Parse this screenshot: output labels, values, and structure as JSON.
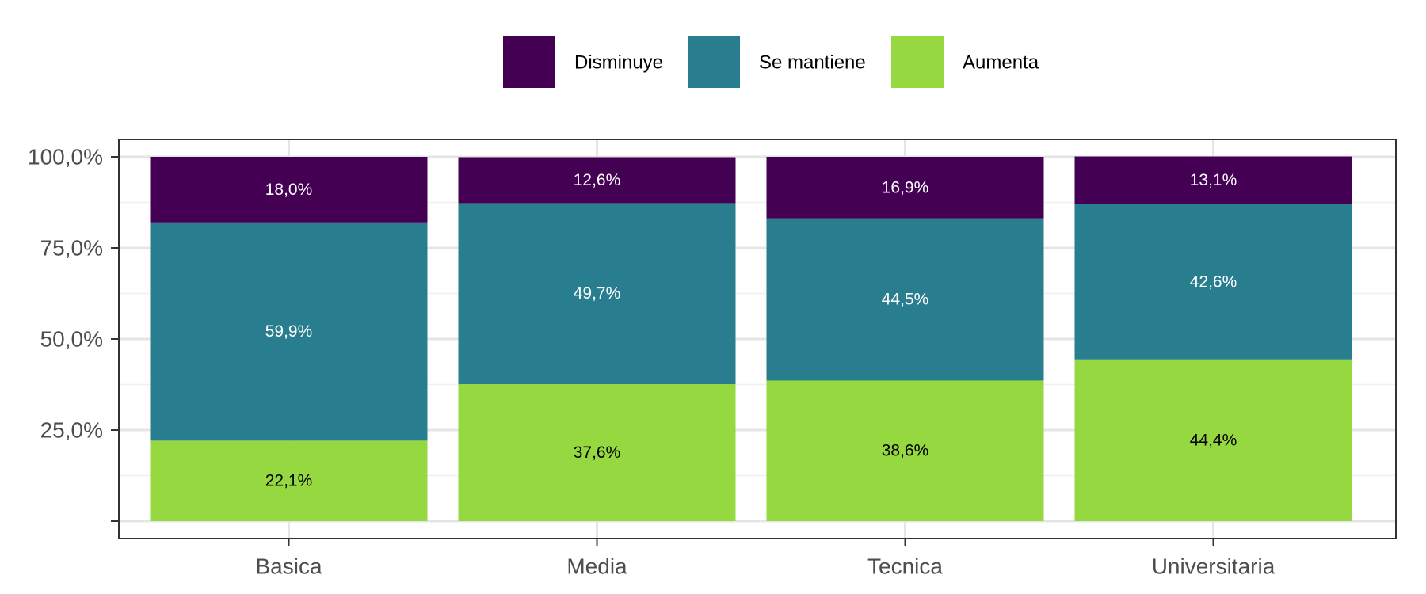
{
  "chart_data": {
    "type": "bar",
    "stacked": true,
    "categories": [
      "Basica",
      "Media",
      "Tecnica",
      "Universitaria"
    ],
    "series": [
      {
        "name": "Aumenta",
        "color": "#95d840",
        "values": [
          22.1,
          37.6,
          38.6,
          44.4
        ],
        "labels": [
          "22,1%",
          "37,6%",
          "38,6%",
          "44,4%"
        ]
      },
      {
        "name": "Se mantiene",
        "color": "#287d8e",
        "values": [
          59.9,
          49.7,
          44.5,
          42.6
        ],
        "labels": [
          "59,9%",
          "49,7%",
          "44,5%",
          "42,6%"
        ]
      },
      {
        "name": "Disminuye",
        "color": "#440154",
        "values": [
          18.0,
          12.6,
          16.9,
          13.1
        ],
        "labels": [
          "18,0%",
          "12,6%",
          "16,9%",
          "13,1%"
        ]
      }
    ],
    "legend_order": [
      "Disminuye",
      "Se mantiene",
      "Aumenta"
    ],
    "legend_position": "top",
    "ylim": [
      0,
      100
    ],
    "yticks": [
      0,
      25,
      50,
      75,
      100
    ],
    "ytick_labels": [
      "",
      "25,0%",
      "50,0%",
      "75,0%",
      "100,0%"
    ],
    "grid": true,
    "xlabel": "",
    "ylabel": "",
    "title": ""
  }
}
